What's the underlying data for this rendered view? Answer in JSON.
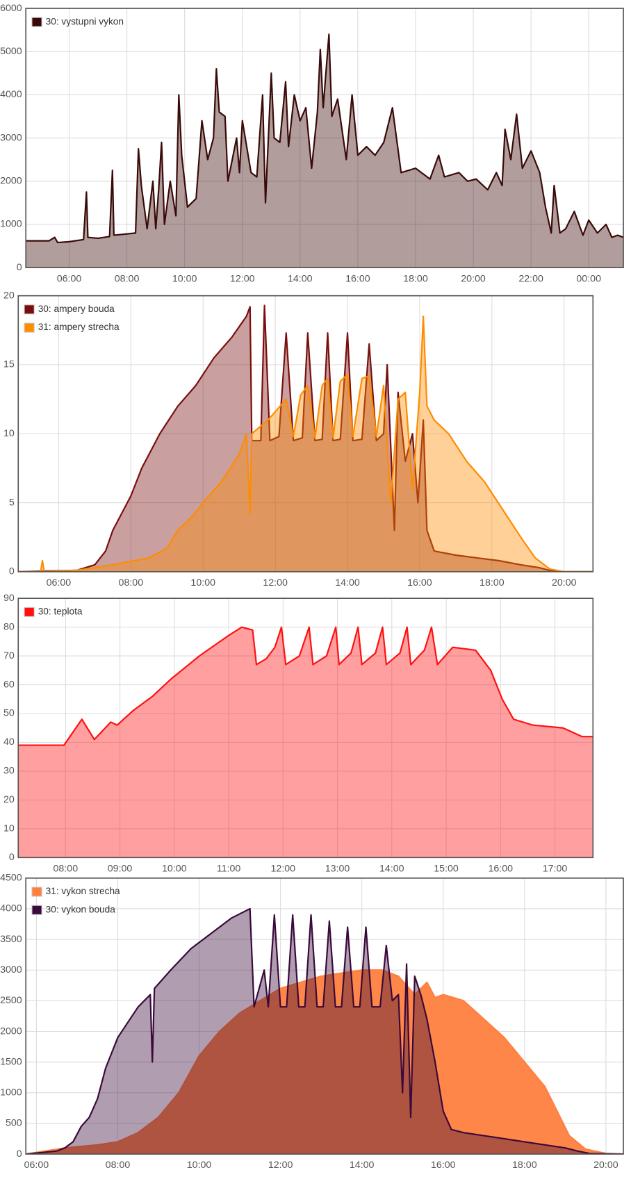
{
  "chart_data": [
    {
      "type": "area",
      "legend": "upper left",
      "grid": true,
      "xlim": [
        4.5,
        25.2
      ],
      "xticks": [
        {
          "value": 6,
          "label": "06:00"
        },
        {
          "value": 8,
          "label": "08:00"
        },
        {
          "value": 10,
          "label": "10:00"
        },
        {
          "value": 12,
          "label": "12:00"
        },
        {
          "value": 14,
          "label": "14:00"
        },
        {
          "value": 16,
          "label": "16:00"
        },
        {
          "value": 18,
          "label": "18:00"
        },
        {
          "value": 20,
          "label": "20:00"
        },
        {
          "value": 22,
          "label": "22:00"
        },
        {
          "value": 24,
          "label": "00:00"
        }
      ],
      "ylim": [
        0,
        6000
      ],
      "yticks": [
        0,
        1000,
        2000,
        3000,
        4000,
        5000,
        6000
      ],
      "series": [
        {
          "name": "30: vystupni vykon",
          "color": "#3a0a08",
          "x": [
            4.5,
            5.3,
            5.5,
            5.6,
            6.0,
            6.5,
            6.6,
            6.65,
            7.0,
            7.4,
            7.5,
            7.55,
            8.0,
            8.3,
            8.4,
            8.5,
            8.7,
            8.9,
            9.0,
            9.1,
            9.2,
            9.3,
            9.5,
            9.7,
            9.8,
            9.9,
            10.1,
            10.4,
            10.6,
            10.8,
            11.0,
            11.1,
            11.2,
            11.4,
            11.5,
            11.8,
            11.9,
            12.0,
            12.3,
            12.5,
            12.7,
            12.8,
            13.0,
            13.1,
            13.3,
            13.5,
            13.6,
            13.8,
            14.0,
            14.2,
            14.4,
            14.6,
            14.7,
            14.8,
            15.0,
            15.1,
            15.3,
            15.6,
            15.8,
            16.0,
            16.3,
            16.6,
            16.9,
            17.2,
            17.5,
            18.0,
            18.5,
            18.8,
            19.0,
            19.5,
            19.8,
            20.1,
            20.5,
            20.8,
            21.0,
            21.1,
            21.3,
            21.5,
            21.7,
            22.0,
            22.3,
            22.5,
            22.7,
            22.8,
            23.0,
            23.2,
            23.5,
            23.8,
            24.0,
            24.3,
            24.6,
            24.8,
            25.0,
            25.2
          ],
          "values": [
            620,
            620,
            700,
            580,
            600,
            650,
            1750,
            700,
            680,
            720,
            2250,
            750,
            780,
            800,
            2750,
            1900,
            900,
            2000,
            900,
            1800,
            2900,
            1000,
            2000,
            1200,
            4000,
            2600,
            1400,
            1600,
            3400,
            2500,
            3000,
            4600,
            3600,
            3500,
            2000,
            3000,
            2200,
            3400,
            2200,
            2100,
            4000,
            1500,
            4500,
            3000,
            2900,
            4300,
            2800,
            4000,
            3400,
            3700,
            2300,
            3600,
            5050,
            3700,
            5400,
            3500,
            3900,
            2500,
            4000,
            2600,
            2800,
            2600,
            2900,
            3700,
            2200,
            2300,
            2050,
            2600,
            2100,
            2200,
            2000,
            2050,
            1800,
            2200,
            1900,
            3200,
            2500,
            3550,
            2300,
            2700,
            2200,
            1400,
            800,
            1900,
            800,
            900,
            1300,
            750,
            1100,
            800,
            1000,
            700,
            750,
            700
          ]
        }
      ]
    },
    {
      "type": "area",
      "legend": "upper left",
      "grid": true,
      "xlim": [
        4.88,
        20.8
      ],
      "xticks": [
        {
          "value": 6,
          "label": "06:00"
        },
        {
          "value": 8,
          "label": "08:00"
        },
        {
          "value": 10,
          "label": "10:00"
        },
        {
          "value": 12,
          "label": "12:00"
        },
        {
          "value": 14,
          "label": "14:00"
        },
        {
          "value": 16,
          "label": "16:00"
        },
        {
          "value": 18,
          "label": "18:00"
        },
        {
          "value": 20,
          "label": "20:00"
        }
      ],
      "ylim": [
        0,
        20
      ],
      "yticks": [
        0,
        5,
        10,
        15,
        20
      ],
      "series": [
        {
          "name": "30: ampery bouda",
          "color": "#7a0e0e",
          "x": [
            4.9,
            6.5,
            7.0,
            7.3,
            7.5,
            7.8,
            8.0,
            8.3,
            8.8,
            9.3,
            9.8,
            10.3,
            10.8,
            11.2,
            11.3,
            11.35,
            11.6,
            11.7,
            11.85,
            12.1,
            12.3,
            12.5,
            12.75,
            12.9,
            13.1,
            13.3,
            13.45,
            13.6,
            13.8,
            14.0,
            14.15,
            14.4,
            14.6,
            14.8,
            15.0,
            15.1,
            15.3,
            15.4,
            15.6,
            15.8,
            15.95,
            16.1,
            16.2,
            16.4,
            17.0,
            17.6,
            18.2,
            18.8,
            19.3,
            19.6,
            20.0,
            20.8
          ],
          "values": [
            0,
            0.1,
            0.5,
            1.5,
            3,
            4.5,
            5.5,
            7.5,
            10,
            12,
            13.5,
            15.5,
            17,
            18.5,
            19.2,
            9.5,
            9.5,
            19.3,
            9.5,
            9.8,
            17.3,
            9.5,
            9.7,
            17.3,
            9.5,
            9.6,
            17.3,
            9.5,
            9.6,
            17.3,
            9.5,
            9.6,
            16.5,
            9.5,
            10,
            15,
            3,
            13,
            8,
            10,
            5,
            11,
            3,
            1.5,
            1.2,
            1.0,
            0.8,
            0.5,
            0.3,
            0.1,
            0,
            0
          ]
        },
        {
          "name": "31: ampery strecha",
          "color": "#ff8c00",
          "x": [
            4.9,
            5.5,
            5.55,
            5.6,
            6.5,
            7.5,
            8.5,
            9.0,
            9.3,
            9.7,
            10.0,
            10.5,
            11.0,
            11.2,
            11.3,
            11.35,
            11.8,
            12.3,
            12.5,
            12.7,
            12.9,
            13.1,
            13.3,
            13.45,
            13.6,
            13.8,
            14.0,
            14.15,
            14.4,
            14.6,
            14.8,
            15.0,
            15.2,
            15.4,
            15.6,
            15.8,
            16.0,
            16.1,
            16.2,
            16.4,
            16.8,
            17.3,
            17.8,
            18.3,
            18.8,
            19.2,
            19.6,
            20.0,
            20.8
          ],
          "values": [
            0,
            0,
            0.8,
            0,
            0.1,
            0.5,
            1,
            1.7,
            3,
            4,
            5,
            6.5,
            8.5,
            10,
            4.2,
            10,
            11,
            12.5,
            9.8,
            12.8,
            13.5,
            9.7,
            13.5,
            14,
            9.7,
            13.8,
            14.3,
            9.8,
            14,
            14.2,
            9.8,
            13.5,
            5,
            12.5,
            13,
            6,
            13,
            18.5,
            12,
            11,
            10,
            8,
            6.5,
            4.5,
            2.5,
            1,
            0.2,
            0,
            0
          ]
        }
      ]
    },
    {
      "type": "area",
      "legend": "upper left",
      "grid": true,
      "xlim": [
        7.13,
        17.7
      ],
      "xticks": [
        {
          "value": 8,
          "label": "08:00"
        },
        {
          "value": 9,
          "label": "09:00"
        },
        {
          "value": 10,
          "label": "10:00"
        },
        {
          "value": 11,
          "label": "11:00"
        },
        {
          "value": 12,
          "label": "12:00"
        },
        {
          "value": 13,
          "label": "13:00"
        },
        {
          "value": 14,
          "label": "14:00"
        },
        {
          "value": 15,
          "label": "15:00"
        },
        {
          "value": 16,
          "label": "16:00"
        },
        {
          "value": 17,
          "label": "17:00"
        }
      ],
      "ylim": [
        0,
        90
      ],
      "yticks": [
        0,
        10,
        20,
        30,
        40,
        50,
        60,
        70,
        80,
        90
      ],
      "series": [
        {
          "name": "30: teplota",
          "color": "#ff1010",
          "x": [
            7.13,
            7.97,
            8.3,
            8.53,
            8.83,
            8.95,
            9.24,
            9.6,
            9.94,
            10.46,
            10.99,
            11.24,
            11.44,
            11.51,
            11.69,
            11.85,
            11.97,
            12.05,
            12.3,
            12.48,
            12.55,
            12.8,
            12.97,
            13.03,
            13.25,
            13.38,
            13.45,
            13.7,
            13.83,
            13.9,
            14.15,
            14.28,
            14.35,
            14.6,
            14.73,
            14.84,
            15.12,
            15.54,
            15.82,
            16.03,
            16.24,
            16.59,
            17.15,
            17.5,
            17.7
          ],
          "values": [
            39,
            39,
            48,
            41,
            47,
            46,
            51,
            56,
            62,
            70,
            77,
            80,
            79,
            67,
            69,
            73,
            80,
            67,
            70,
            80,
            67,
            70,
            80,
            67,
            71,
            80,
            67,
            71,
            80,
            67,
            71,
            80,
            67,
            72,
            80,
            67,
            73,
            72,
            65,
            55,
            48,
            46,
            45,
            42,
            42
          ]
        }
      ]
    },
    {
      "type": "area",
      "legend": "upper left",
      "grid": true,
      "xlim": [
        5.74,
        20.43
      ],
      "xticks": [
        {
          "value": 6,
          "label": "06:00"
        },
        {
          "value": 8,
          "label": "08:00"
        },
        {
          "value": 10,
          "label": "10:00"
        },
        {
          "value": 12,
          "label": "12:00"
        },
        {
          "value": 14,
          "label": "14:00"
        },
        {
          "value": 16,
          "label": "16:00"
        },
        {
          "value": 18,
          "label": "18:00"
        },
        {
          "value": 20,
          "label": "20:00"
        }
      ],
      "ylim": [
        0,
        4500
      ],
      "yticks": [
        0,
        500,
        1000,
        1500,
        2000,
        2500,
        3000,
        3500,
        4000,
        4500
      ],
      "series": [
        {
          "name": "31: vykon strecha",
          "color": "#ff7f3f",
          "x": [
            5.74,
            6.7,
            7.5,
            8.0,
            8.5,
            9.0,
            9.5,
            10.0,
            10.5,
            11.0,
            11.5,
            12.0,
            12.5,
            13.0,
            13.5,
            14.0,
            14.5,
            14.9,
            15.3,
            15.6,
            15.8,
            16.0,
            16.5,
            17.0,
            17.5,
            18.0,
            18.5,
            18.8,
            19.1,
            19.5,
            20.0,
            20.43
          ],
          "values": [
            0,
            100,
            150,
            200,
            350,
            600,
            1000,
            1600,
            2000,
            2300,
            2500,
            2700,
            2800,
            2900,
            2950,
            3000,
            3000,
            2900,
            2600,
            2800,
            2550,
            2600,
            2500,
            2200,
            1900,
            1500,
            1100,
            700,
            300,
            80,
            10,
            0
          ]
        },
        {
          "name": "30: vykon bouda",
          "color": "#3a0a3a",
          "x": [
            5.74,
            6.5,
            6.7,
            6.9,
            7.1,
            7.3,
            7.5,
            7.7,
            8.0,
            8.5,
            8.8,
            8.85,
            8.9,
            9.3,
            9.8,
            10.3,
            10.8,
            11.25,
            11.35,
            11.6,
            11.7,
            11.85,
            12.0,
            12.15,
            12.3,
            12.45,
            12.6,
            12.75,
            12.9,
            13.05,
            13.2,
            13.35,
            13.5,
            13.65,
            13.8,
            13.95,
            14.1,
            14.25,
            14.45,
            14.6,
            14.75,
            14.9,
            15.0,
            15.1,
            15.2,
            15.3,
            15.45,
            15.6,
            15.8,
            16.0,
            16.2,
            16.5,
            17.0,
            17.5,
            18.0,
            18.5,
            19.0,
            19.3,
            19.6,
            20.43
          ],
          "values": [
            0,
            50,
            100,
            200,
            450,
            600,
            900,
            1400,
            1900,
            2400,
            2600,
            1500,
            2700,
            3000,
            3350,
            3600,
            3850,
            4000,
            2400,
            3000,
            2400,
            3900,
            2400,
            2400,
            3900,
            2400,
            2400,
            3900,
            2400,
            2400,
            3800,
            2400,
            2400,
            3700,
            2400,
            2400,
            3700,
            2400,
            2400,
            3400,
            2500,
            2600,
            1000,
            3100,
            600,
            2900,
            2600,
            2200,
            1500,
            700,
            400,
            350,
            300,
            250,
            200,
            150,
            100,
            50,
            10,
            0
          ]
        }
      ]
    }
  ]
}
